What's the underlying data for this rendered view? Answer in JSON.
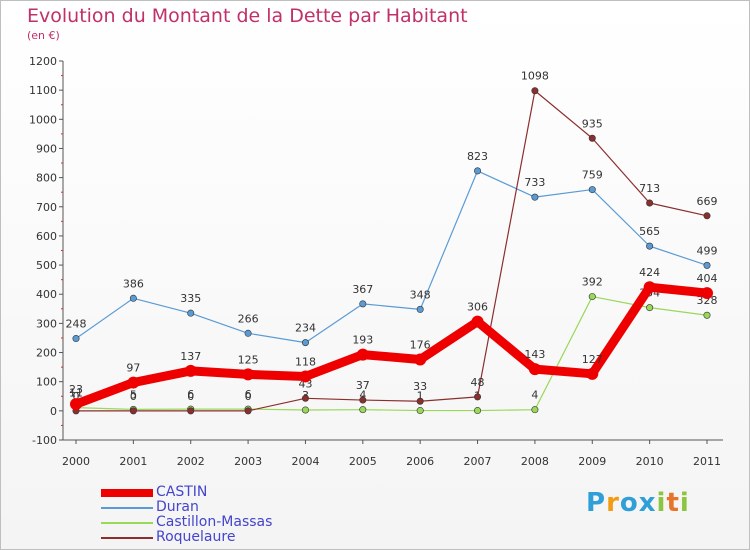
{
  "chart_data": {
    "type": "line",
    "title": "Evolution du Montant de la Dette par Habitant",
    "subtitle": "(en €)",
    "x": [
      "2000",
      "2001",
      "2002",
      "2003",
      "2004",
      "2005",
      "2006",
      "2007",
      "2008",
      "2009",
      "2010",
      "2011"
    ],
    "ylim": [
      -100,
      1200
    ],
    "yticks": [
      -100,
      0,
      100,
      200,
      300,
      400,
      500,
      600,
      700,
      800,
      900,
      1000,
      1100,
      1200
    ],
    "grid": false,
    "legend_position": "bottom-left",
    "series": [
      {
        "name": "Duran",
        "color": "#5b9bd5",
        "values": [
          248,
          386,
          335,
          266,
          234,
          367,
          348,
          823,
          733,
          759,
          565,
          499
        ]
      },
      {
        "name": "Castillon-Massas",
        "color": "#9ad85a",
        "values": [
          11,
          5,
          6,
          6,
          3,
          4,
          1,
          1,
          4,
          392,
          354,
          328
        ]
      },
      {
        "name": "Roquelaure",
        "color": "#8b2e2e",
        "values": [
          0,
          0,
          0,
          0,
          43,
          37,
          33,
          48,
          1098,
          935,
          713,
          669
        ]
      },
      {
        "name": "CASTIN",
        "color": "#ee0000",
        "values": [
          23,
          97,
          137,
          125,
          118,
          193,
          176,
          306,
          143,
          127,
          424,
          404
        ]
      }
    ]
  },
  "legend": {
    "items": [
      {
        "label": "CASTIN",
        "color": "#ee0000"
      },
      {
        "label": "Duran",
        "color": "#5b9bd5"
      },
      {
        "label": "Castillon-Massas",
        "color": "#9ad85a"
      },
      {
        "label": "Roquelaure",
        "color": "#8b2e2e"
      }
    ]
  },
  "brand": {
    "letters": [
      "P",
      "r",
      "o",
      "x",
      "i",
      "t",
      "i"
    ],
    "colors": [
      "#2f9fd8",
      "#f39c12",
      "#2f9fd8",
      "#2f9fd8",
      "#8cc63f",
      "#e8732a",
      "#8cc63f"
    ]
  }
}
